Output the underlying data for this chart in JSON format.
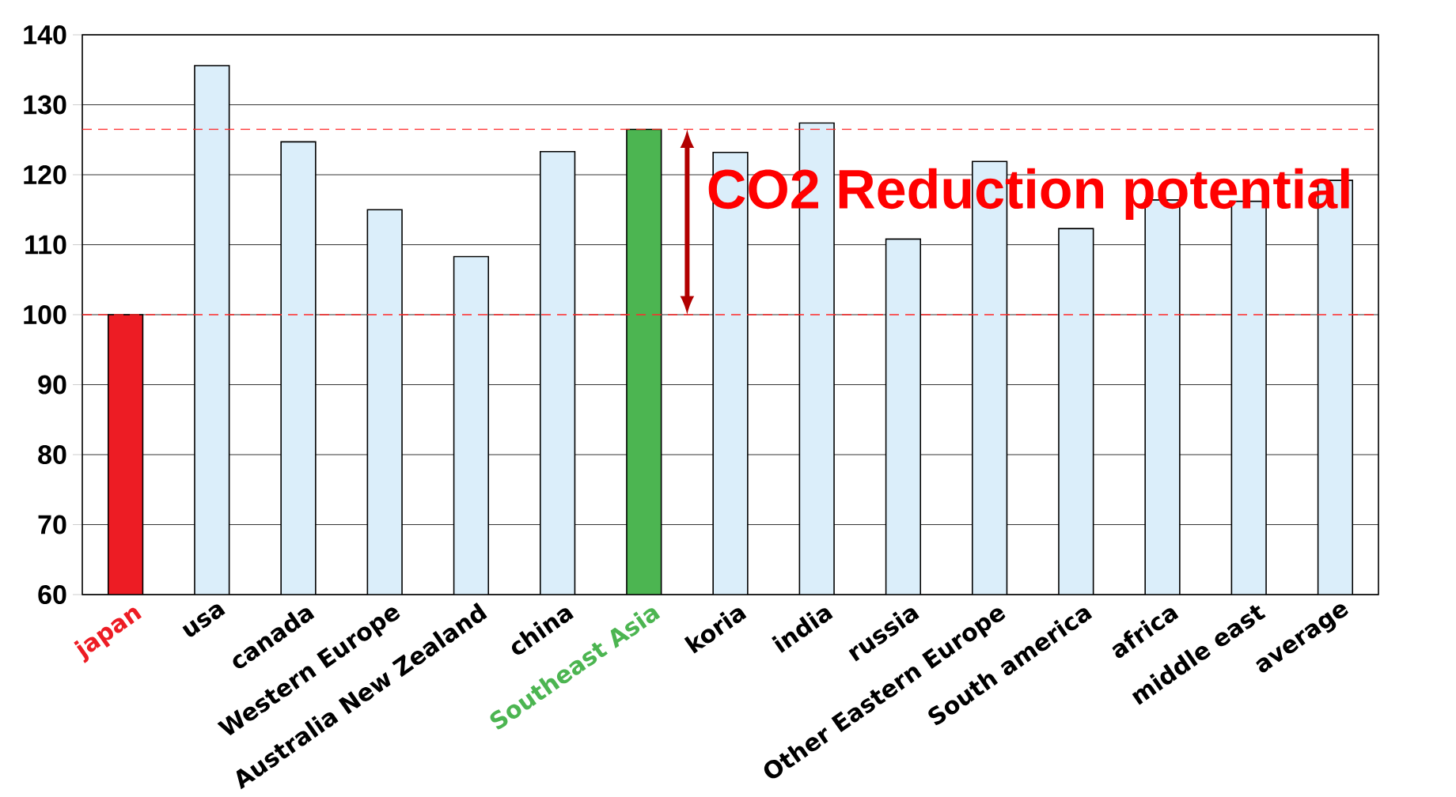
{
  "chart_data": {
    "type": "bar",
    "categories": [
      "japan",
      "usa",
      "canada",
      "Western Europe",
      "Australia New Zealand",
      "china",
      "Southeast Asia",
      "koria",
      "india",
      "russia",
      "Other Eastern Europe",
      "South america",
      "africa",
      "middle east",
      "average"
    ],
    "values": [
      100,
      135.6,
      124.7,
      115.0,
      108.3,
      123.3,
      126.5,
      123.2,
      127.4,
      110.8,
      121.9,
      112.3,
      116.4,
      116.2,
      119.2
    ],
    "colors": [
      "#ed1c24",
      "#dbeefa",
      "#dbeefa",
      "#dbeefa",
      "#dbeefa",
      "#dbeefa",
      "#4cb551",
      "#dbeefa",
      "#dbeefa",
      "#dbeefa",
      "#dbeefa",
      "#dbeefa",
      "#dbeefa",
      "#dbeefa",
      "#dbeefa"
    ],
    "ylim": [
      60,
      140
    ],
    "yticks": [
      60,
      70,
      80,
      90,
      100,
      110,
      120,
      130,
      140
    ],
    "grid": "y",
    "ref_lines": [
      {
        "axis": "y",
        "value": 126.5,
        "color": "#ff2a2a",
        "line_style": "dashed"
      },
      {
        "axis": "y",
        "value": 100,
        "color": "#ff2a2a",
        "line_style": "dashed"
      }
    ],
    "annotations": [
      {
        "text": "CO2 Reduction potential",
        "x": "Southeast Asia",
        "y": 126.5
      }
    ]
  }
}
